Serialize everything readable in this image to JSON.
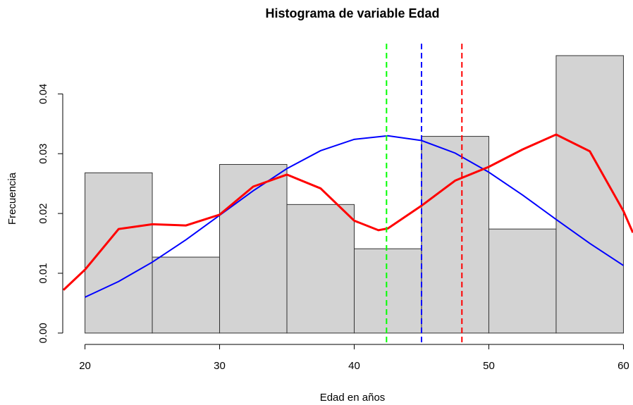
{
  "chart_data": {
    "type": "histogram",
    "title": "Histograma de variable Edad",
    "xlabel": "Edad en años",
    "ylabel": "Frecuencia",
    "bins": [
      20,
      25,
      30,
      35,
      40,
      45,
      50,
      55,
      60
    ],
    "values": [
      0.0268,
      0.0127,
      0.0282,
      0.0215,
      0.0141,
      0.0329,
      0.0174,
      0.0464
    ],
    "color": "#d3d3d3",
    "xlim": [
      18.4,
      61.6
    ],
    "ylim": [
      -0.0019,
      0.0484
    ],
    "xticks": [
      20,
      30,
      40,
      50,
      60
    ],
    "yticks": [
      {
        "value": 0,
        "label": "0.00"
      },
      0.01,
      0.02,
      0.03,
      0.04
    ],
    "lines": [
      {
        "color": "#0000ff",
        "width": 2,
        "x": [
          20,
          22.5,
          25,
          27.5,
          30,
          32.5,
          35,
          37.5,
          40,
          42.5,
          45,
          47.5,
          50,
          52.5,
          55,
          57.5,
          60
        ],
        "values": [
          0.006,
          0.00863,
          0.01186,
          0.0156,
          0.0197,
          0.0238,
          0.0275,
          0.0305,
          0.0324,
          0.033,
          0.0322,
          0.0301,
          0.0269,
          0.0231,
          0.019,
          0.015,
          0.0113
        ]
      },
      {
        "color": "#ff0000",
        "width": 3,
        "x": [
          18.4,
          20,
          22.5,
          25,
          27.5,
          30,
          32.5,
          35,
          37.5,
          40,
          41.8,
          42.5,
          45,
          47.5,
          50,
          52.5,
          55,
          57.5,
          60,
          60.7
        ],
        "values": [
          0.0072,
          0.0106,
          0.0174,
          0.0182,
          0.018,
          0.0198,
          0.0245,
          0.0265,
          0.0242,
          0.0188,
          0.0172,
          0.0175,
          0.0213,
          0.0255,
          0.0278,
          0.0307,
          0.0332,
          0.0304,
          0.0204,
          0.0168
        ]
      }
    ],
    "vlines": [
      {
        "value": 42.4,
        "color": "#00ff00"
      },
      {
        "value": 45.0,
        "color": "#0000ff"
      },
      {
        "value": 48.0,
        "color": "#ff0000"
      }
    ]
  }
}
